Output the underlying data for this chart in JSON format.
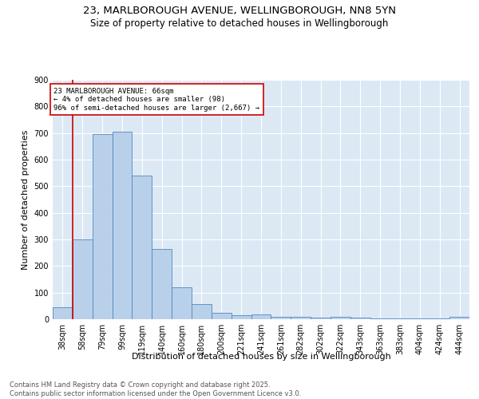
{
  "title_line1": "23, MARLBOROUGH AVENUE, WELLINGBOROUGH, NN8 5YN",
  "title_line2": "Size of property relative to detached houses in Wellingborough",
  "xlabel": "Distribution of detached houses by size in Wellingborough",
  "ylabel": "Number of detached properties",
  "categories": [
    "38sqm",
    "58sqm",
    "79sqm",
    "99sqm",
    "119sqm",
    "140sqm",
    "160sqm",
    "180sqm",
    "200sqm",
    "221sqm",
    "241sqm",
    "261sqm",
    "282sqm",
    "302sqm",
    "322sqm",
    "343sqm",
    "363sqm",
    "383sqm",
    "404sqm",
    "424sqm",
    "444sqm"
  ],
  "values": [
    45,
    300,
    695,
    705,
    540,
    265,
    120,
    57,
    25,
    15,
    18,
    8,
    10,
    5,
    10,
    5,
    3,
    3,
    3,
    3,
    8
  ],
  "bar_color": "#b8d0ea",
  "bar_edge_color": "#5588bb",
  "background_color": "#dce9f5",
  "grid_color": "#ffffff",
  "ylim": [
    0,
    900
  ],
  "yticks": [
    0,
    100,
    200,
    300,
    400,
    500,
    600,
    700,
    800,
    900
  ],
  "annotation_box_text": "23 MARLBOROUGH AVENUE: 66sqm\n← 4% of detached houses are smaller (98)\n96% of semi-detached houses are larger (2,667) →",
  "annotation_box_color": "#cc0000",
  "vline_x_index": 1,
  "vline_color": "#cc0000",
  "footer_line1": "Contains HM Land Registry data © Crown copyright and database right 2025.",
  "footer_line2": "Contains public sector information licensed under the Open Government Licence v3.0.",
  "title_fontsize": 9.5,
  "subtitle_fontsize": 8.5,
  "axis_label_fontsize": 8,
  "tick_fontsize": 7,
  "annotation_fontsize": 6.5,
  "footer_fontsize": 6
}
